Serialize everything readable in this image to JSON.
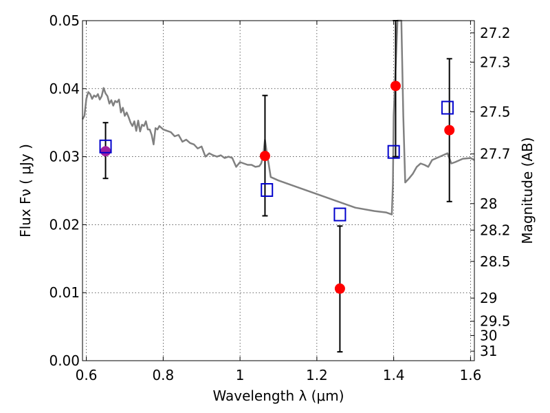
{
  "chart_data": {
    "type": "scatter",
    "xlabel": "Wavelength  λ (μm)",
    "ylabel": "Flux  Fν  ( μJy )",
    "y2label": "Magnitude (AB)",
    "xlim": [
      0.59,
      1.61
    ],
    "ylim": [
      0.0,
      0.05
    ],
    "grid": true,
    "x_ticks": [
      0.6,
      0.8,
      1.0,
      1.2,
      1.4,
      1.6
    ],
    "x_tick_labels": [
      "0.6",
      "0.8",
      "1",
      "1.2",
      "1.4",
      "1.6"
    ],
    "y_ticks": [
      0.0,
      0.01,
      0.02,
      0.03,
      0.04,
      0.05
    ],
    "y_tick_labels": [
      "0.00",
      "0.01",
      "0.02",
      "0.03",
      "0.04",
      "0.05"
    ],
    "mag_ticks": [
      {
        "label": "27.2",
        "flux": 0.0482
      },
      {
        "label": "27.3",
        "flux": 0.0439
      },
      {
        "label": "27.5",
        "flux": 0.0366
      },
      {
        "label": "27.7",
        "flux": 0.0304
      },
      {
        "label": "28",
        "flux": 0.0231
      },
      {
        "label": "28.2",
        "flux": 0.0192
      },
      {
        "label": "28.5",
        "flux": 0.0146
      },
      {
        "label": "29",
        "flux": 0.0092
      },
      {
        "label": "29.5",
        "flux": 0.0058
      },
      {
        "label": "30",
        "flux": 0.0037
      },
      {
        "label": "31",
        "flux": 0.0014
      }
    ],
    "colors": {
      "observed": "#ff0000",
      "model": "#0000cc",
      "overlap_marker": "#a020a0",
      "sed": "#808080",
      "errorbar": "#000000"
    },
    "series": [
      {
        "role": "sed",
        "x": [
          0.59,
          0.595,
          0.6,
          0.605,
          0.61,
          0.615,
          0.62,
          0.625,
          0.63,
          0.635,
          0.64,
          0.645,
          0.65,
          0.655,
          0.66,
          0.665,
          0.67,
          0.675,
          0.68,
          0.685,
          0.69,
          0.695,
          0.7,
          0.705,
          0.71,
          0.715,
          0.72,
          0.725,
          0.73,
          0.735,
          0.74,
          0.745,
          0.75,
          0.755,
          0.76,
          0.765,
          0.77,
          0.775,
          0.78,
          0.785,
          0.79,
          0.8,
          0.81,
          0.82,
          0.83,
          0.84,
          0.85,
          0.86,
          0.87,
          0.88,
          0.89,
          0.9,
          0.91,
          0.92,
          0.93,
          0.94,
          0.95,
          0.96,
          0.97,
          0.98,
          0.99,
          1.0,
          1.01,
          1.02,
          1.03,
          1.04,
          1.05,
          1.055,
          1.06,
          1.065,
          1.07,
          1.075,
          1.08,
          1.1,
          1.15,
          1.2,
          1.25,
          1.3,
          1.35,
          1.38,
          1.395,
          1.398,
          1.4,
          1.41,
          1.42,
          1.425,
          1.43,
          1.44,
          1.45,
          1.46,
          1.47,
          1.48,
          1.49,
          1.5,
          1.52,
          1.54,
          1.55,
          1.56,
          1.58,
          1.6,
          1.61
        ],
        "y": [
          0.0355,
          0.036,
          0.0385,
          0.0395,
          0.0392,
          0.0385,
          0.039,
          0.0388,
          0.0392,
          0.0384,
          0.0389,
          0.0401,
          0.0393,
          0.0389,
          0.0378,
          0.0383,
          0.0375,
          0.0382,
          0.038,
          0.0384,
          0.0365,
          0.0372,
          0.036,
          0.0365,
          0.0358,
          0.035,
          0.0345,
          0.0352,
          0.0338,
          0.0353,
          0.0337,
          0.0347,
          0.0345,
          0.0352,
          0.034,
          0.034,
          0.0332,
          0.0318,
          0.0342,
          0.034,
          0.0345,
          0.034,
          0.0338,
          0.0336,
          0.033,
          0.0332,
          0.0322,
          0.0325,
          0.032,
          0.0318,
          0.0312,
          0.0315,
          0.03,
          0.0305,
          0.0302,
          0.03,
          0.0302,
          0.0298,
          0.03,
          0.0298,
          0.0285,
          0.0292,
          0.029,
          0.0288,
          0.0288,
          0.0285,
          0.0286,
          0.029,
          0.03,
          0.0325,
          0.0305,
          0.0288,
          0.027,
          0.0265,
          0.0255,
          0.0245,
          0.0235,
          0.0225,
          0.022,
          0.0218,
          0.0215,
          0.026,
          0.036,
          0.0505,
          0.0505,
          0.036,
          0.0262,
          0.0268,
          0.0275,
          0.0285,
          0.029,
          0.0288,
          0.0285,
          0.0295,
          0.03,
          0.0305,
          0.029,
          0.0292,
          0.0297,
          0.0298,
          0.0295
        ]
      },
      {
        "role": "observed",
        "x": [
          0.65,
          1.065,
          1.26,
          1.405,
          1.545
        ],
        "y": [
          0.0308,
          0.0301,
          0.0106,
          0.0404,
          0.0339
        ],
        "yerr_low": [
          0.0268,
          0.0213,
          0.0013,
          0.03,
          0.0234
        ],
        "yerr_high": [
          0.035,
          0.039,
          0.0198,
          0.05,
          0.0444
        ]
      },
      {
        "role": "model",
        "x": [
          0.65,
          1.07,
          1.26,
          1.4,
          1.54
        ],
        "y": [
          0.0315,
          0.0251,
          0.0215,
          0.0307,
          0.0372
        ]
      }
    ]
  }
}
